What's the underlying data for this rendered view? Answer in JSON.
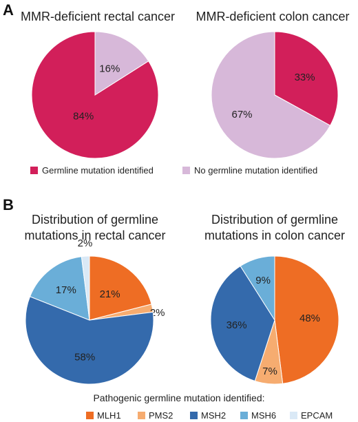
{
  "panel_a": {
    "letter": "A",
    "legend": [
      {
        "label": "Germline mutation identified",
        "color": "#d21f5a"
      },
      {
        "label": "No germline mutation identified",
        "color": "#d7b8d9"
      }
    ]
  },
  "panel_b": {
    "letter": "B",
    "legend_title": "Pathogenic germline mutation identified:",
    "legend": [
      {
        "label": "MLH1",
        "color": "#ee6d24"
      },
      {
        "label": "PMS2",
        "color": "#f6ac70"
      },
      {
        "label": "MSH2",
        "color": "#346aac"
      },
      {
        "label": "MSH6",
        "color": "#6aaed8"
      },
      {
        "label": "EPCAM",
        "color": "#dae9f6"
      }
    ]
  },
  "chart_data": [
    {
      "type": "pie",
      "title": "MMR-deficient rectal cancer",
      "categories": [
        "Germline mutation identified",
        "No germline mutation identified"
      ],
      "values": [
        84,
        16
      ],
      "labels": [
        "84%",
        "16%"
      ],
      "colors": [
        "#d21f5a",
        "#d7b8d9"
      ]
    },
    {
      "type": "pie",
      "title": "MMR-deficient colon cancer",
      "categories": [
        "Germline mutation identified",
        "No germline mutation identified"
      ],
      "values": [
        33,
        67
      ],
      "labels": [
        "33%",
        "67%"
      ],
      "colors": [
        "#d21f5a",
        "#d7b8d9"
      ]
    },
    {
      "type": "pie",
      "title": "Distribution of germline mutations in rectal cancer",
      "title_lines": [
        "Distribution of germline",
        "mutations in rectal cancer"
      ],
      "categories": [
        "MLH1",
        "PMS2",
        "MSH2",
        "MSH6",
        "EPCAM"
      ],
      "values": [
        21,
        2,
        58,
        17,
        2
      ],
      "labels": [
        "21%",
        "2%",
        "58%",
        "17%",
        "2%"
      ],
      "colors": [
        "#ee6d24",
        "#f6ac70",
        "#346aac",
        "#6aaed8",
        "#dae9f6"
      ]
    },
    {
      "type": "pie",
      "title": "Distribution of germline mutations in colon cancer",
      "title_lines": [
        "Distribution of germline",
        "mutations in colon cancer"
      ],
      "categories": [
        "MLH1",
        "PMS2",
        "MSH2",
        "MSH6"
      ],
      "values": [
        48,
        7,
        36,
        9
      ],
      "labels": [
        "48%",
        "7%",
        "36%",
        "9%"
      ],
      "colors": [
        "#ee6d24",
        "#f6ac70",
        "#346aac",
        "#6aaed8"
      ]
    }
  ]
}
